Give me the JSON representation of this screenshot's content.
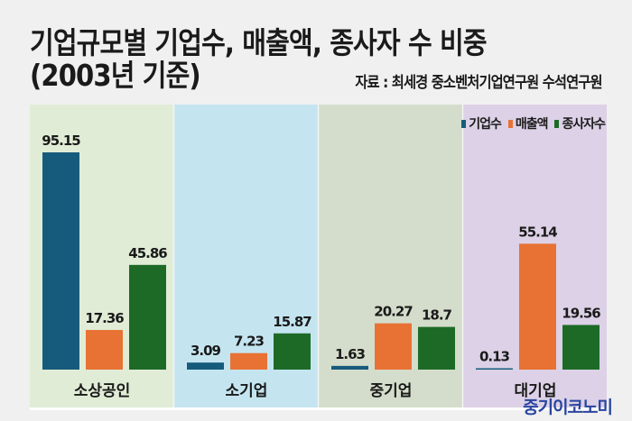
{
  "header": {
    "title_line1": "기업규모별 기업수, 매출액, 종사자 수 비중",
    "title_line2": "(2003년 기준)",
    "source": "자료 : 최세경 중소벤처기업연구원 수석연구원"
  },
  "watermark": "중기이코노미",
  "chart_data": {
    "type": "bar",
    "categories": [
      "소상공인",
      "소기업",
      "중기업",
      "대기업"
    ],
    "category_backgrounds": [
      "#e1ecd6",
      "#c4e5f0",
      "#d4ddcb",
      "#dcd1e6"
    ],
    "series": [
      {
        "name": "기업수",
        "color": "#175b7c",
        "values": [
          95.15,
          3.09,
          1.63,
          0.13
        ]
      },
      {
        "name": "매출액",
        "color": "#e87233",
        "values": [
          17.36,
          7.23,
          20.27,
          55.14
        ]
      },
      {
        "name": "종사자수",
        "color": "#1d6a27",
        "values": [
          45.86,
          15.87,
          18.7,
          19.56
        ]
      }
    ],
    "data_labels": [
      [
        "95.15",
        "3.09",
        "1.63",
        "0.13"
      ],
      [
        "17.36",
        "7.23",
        "20.27",
        "55.14"
      ],
      [
        "45.86",
        "15.87",
        "18.7",
        "19.56"
      ]
    ],
    "ylim": [
      0,
      100
    ],
    "legend": "top-right",
    "grid": false
  }
}
